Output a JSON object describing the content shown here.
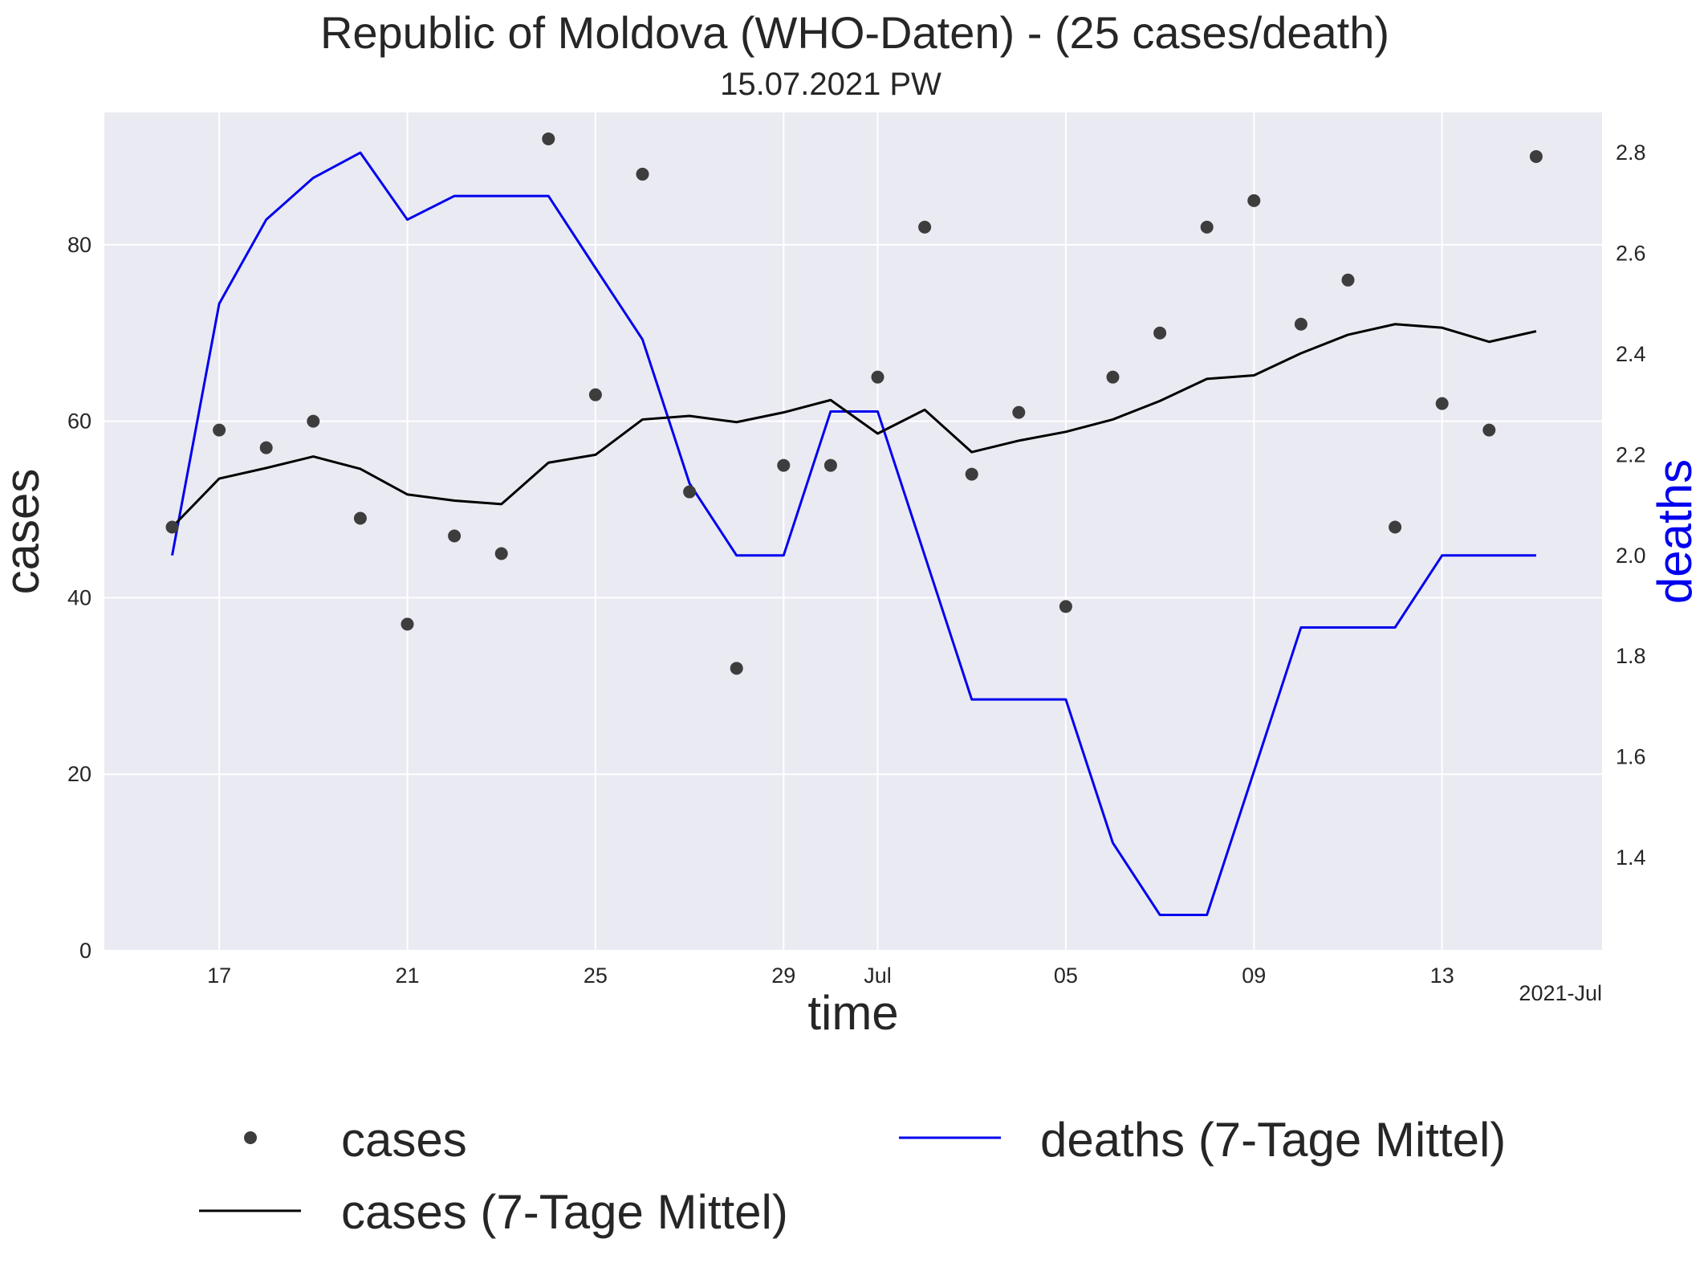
{
  "chart_data": {
    "type": "line",
    "title": "Republic of Moldova (WHO-Daten) - (25 cases/death)",
    "subtitle": "15.07.2021 PW",
    "xlabel": "time",
    "ylabel_left": "cases",
    "ylabel_right": "deaths",
    "x_offset_label": "2021-Jul",
    "x_start_date": "2021-06-16",
    "x_tick_labels": [
      "17",
      "21",
      "25",
      "29",
      "Jul",
      "05",
      "09",
      "13"
    ],
    "x_tick_day_index": [
      1,
      5,
      9,
      13,
      15,
      19,
      23,
      27
    ],
    "ylim_left": [
      0,
      95
    ],
    "yticks_left": [
      0,
      20,
      40,
      60,
      80
    ],
    "ylim_right": [
      1.215,
      2.88
    ],
    "yticks_right": [
      1.4,
      1.6,
      1.8,
      2.0,
      2.2,
      2.4,
      2.6,
      2.8
    ],
    "grid": true,
    "legend_placement": "bottom",
    "colors": {
      "plot_background": "#eaeaf2",
      "cases_points": "#3d3d3d",
      "cases_avg": "#000000",
      "deaths_avg": "#0000ee",
      "deaths_label": "#0000ee",
      "grid": "#ffffff"
    },
    "series": [
      {
        "name": "cases",
        "axis": "left",
        "style": "points",
        "values": [
          48,
          59,
          57,
          60,
          49,
          37,
          47,
          45,
          92,
          63,
          88,
          52,
          32,
          55,
          55,
          65,
          82,
          54,
          61,
          39,
          65,
          70,
          82,
          85,
          71,
          76,
          48,
          62,
          59,
          90
        ]
      },
      {
        "name": "cases (7-Tage Mittel)",
        "axis": "left",
        "style": "line",
        "values": [
          48,
          53.5,
          54.7,
          56.0,
          54.6,
          51.7,
          51.0,
          50.6,
          55.3,
          56.2,
          60.2,
          60.6,
          59.9,
          61.0,
          62.4,
          58.6,
          61.3,
          56.5,
          57.8,
          58.8,
          60.2,
          62.3,
          64.8,
          65.2,
          67.7,
          69.8,
          71.0,
          70.6,
          69.0,
          70.2
        ]
      },
      {
        "name": "deaths (7-Tage Mittel)",
        "axis": "right",
        "style": "line",
        "values": [
          2.0,
          2.5,
          2.667,
          2.75,
          2.8,
          2.667,
          2.714,
          2.714,
          2.714,
          2.571,
          2.429,
          2.143,
          2.0,
          2.0,
          2.286,
          2.286,
          2.0,
          1.714,
          1.714,
          1.714,
          1.429,
          1.286,
          1.286,
          1.571,
          1.857,
          1.857,
          1.857,
          2.0,
          2.0,
          2.0
        ]
      }
    ]
  }
}
